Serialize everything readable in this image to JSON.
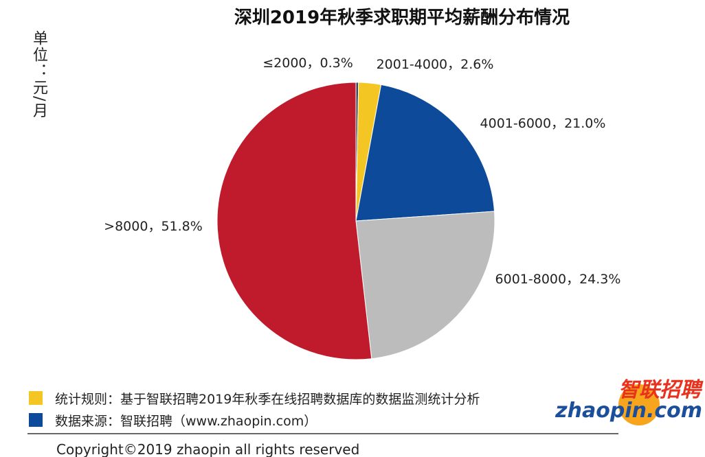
{
  "chart_data": {
    "type": "pie",
    "title": "深圳2019年秋季求职期平均薪酬分布情况",
    "unit_label": "单位：元/月",
    "values": [
      0.3,
      2.6,
      21.0,
      24.3,
      51.8
    ],
    "value_labels": [
      "≤2000，0.3%",
      "2001-4000，2.6%",
      "4001-6000，21.0%",
      "6001-8000，24.3%",
      ">8000，51.8%"
    ],
    "colors": [
      "#3b4656",
      "#f3c623",
      "#0d4a99",
      "#bcbcbc",
      "#c01b2c"
    ]
  },
  "notes": [
    "统计规则：基于智联招聘2019年秋季在线招聘数据库的数据监测统计分析",
    "数据来源：智联招聘（www.zhaopin.com）"
  ],
  "logo": {
    "name": "智联招聘",
    "domain": "zhaopin.com"
  },
  "copyright": "Copyright©2019 zhaopin all rights reserved"
}
